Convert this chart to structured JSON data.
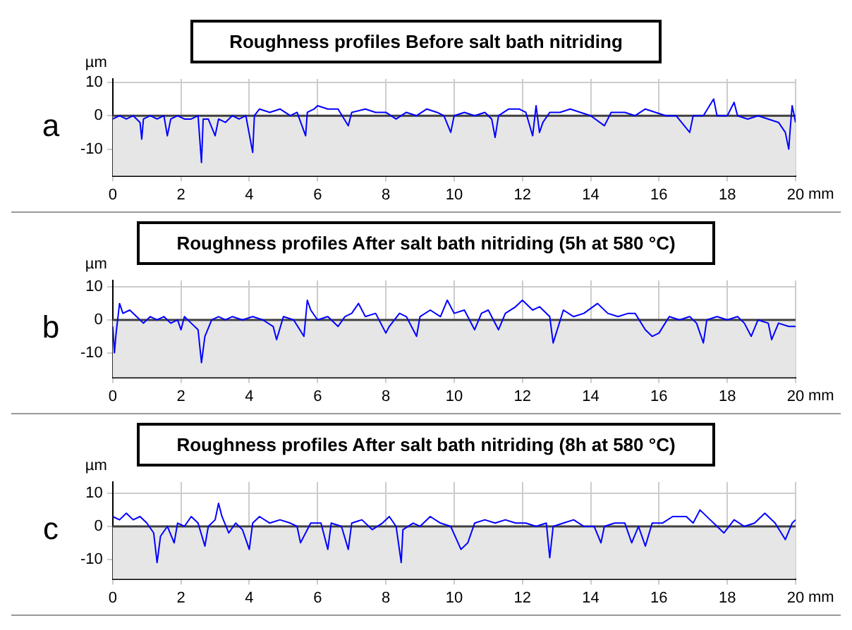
{
  "chart_data": [
    {
      "type": "line",
      "title": "Roughness profiles Before salt bath nitriding",
      "xlabel": "mm",
      "ylabel": "µm",
      "annotations": [
        "a"
      ],
      "xlim": [
        0,
        20
      ],
      "xticks": [
        0,
        2,
        4,
        6,
        8,
        10,
        12,
        14,
        16,
        18,
        20
      ],
      "ylim": [
        -18,
        11
      ],
      "yticks": [
        -10,
        0,
        10
      ],
      "grid": true,
      "legend": false,
      "marker": "none",
      "line_style": "solid",
      "ref_lines": [
        {
          "axis": "y",
          "value": 0,
          "color": "#404040"
        }
      ],
      "bands": [
        {
          "axis": "y",
          "from": -18,
          "to": 0,
          "color": "#e6e6e6"
        }
      ],
      "series": [
        {
          "color": "#0000ff",
          "x": [
            0,
            0.2,
            0.4,
            0.6,
            0.8,
            0.85,
            0.9,
            1.1,
            1.3,
            1.5,
            1.6,
            1.7,
            1.9,
            2.1,
            2.3,
            2.5,
            2.6,
            2.65,
            2.8,
            3.0,
            3.1,
            3.3,
            3.5,
            3.7,
            3.9,
            4.1,
            4.15,
            4.3,
            4.6,
            4.9,
            5.2,
            5.4,
            5.65,
            5.7,
            5.9,
            6.0,
            6.3,
            6.6,
            6.9,
            7.0,
            7.4,
            7.7,
            8.0,
            8.3,
            8.6,
            8.9,
            9.2,
            9.5,
            9.7,
            9.9,
            10.0,
            10.3,
            10.6,
            10.9,
            11.1,
            11.2,
            11.3,
            11.6,
            11.9,
            12.1,
            12.3,
            12.4,
            12.5,
            12.6,
            12.8,
            13.1,
            13.4,
            13.7,
            14.0,
            14.4,
            14.6,
            15.0,
            15.3,
            15.6,
            15.9,
            16.2,
            16.5,
            16.9,
            17.0,
            17.3,
            17.6,
            17.7,
            18.0,
            18.2,
            18.3,
            18.6,
            18.9,
            19.2,
            19.5,
            19.7,
            19.8,
            19.85,
            19.9,
            20
          ],
          "values": [
            -1,
            0,
            -1,
            0,
            -2,
            -7,
            -1,
            0,
            -1,
            0,
            -6,
            -1,
            0,
            -1,
            -1,
            0,
            -14,
            -1,
            -1,
            -6,
            -1,
            -2,
            0,
            -1,
            0,
            -11,
            0,
            2,
            1,
            2,
            0,
            1,
            -6,
            1,
            2,
            3,
            2,
            2,
            -3,
            1,
            2,
            1,
            1,
            -1,
            1,
            0,
            2,
            1,
            0,
            -5,
            0,
            1,
            0,
            1,
            -1,
            -6.5,
            0,
            2,
            2,
            1,
            -6,
            3,
            -5,
            -2,
            1,
            1,
            2,
            1,
            0,
            -3,
            1,
            1,
            0,
            2,
            1,
            0,
            0,
            -5,
            0,
            0,
            5,
            0,
            0,
            4,
            0,
            -1,
            0,
            -1,
            -2,
            -5,
            -10,
            -3,
            3,
            -2
          ]
        }
      ]
    },
    {
      "type": "line",
      "title": "Roughness profiles After salt bath nitriding (5h at 580 °C)",
      "xlabel": "mm",
      "ylabel": "µm",
      "annotations": [
        "b"
      ],
      "xlim": [
        0,
        20
      ],
      "xticks": [
        0,
        2,
        4,
        6,
        8,
        10,
        12,
        14,
        16,
        18,
        20
      ],
      "ylim": [
        -17.5,
        12
      ],
      "yticks": [
        -10,
        0,
        10
      ],
      "grid": true,
      "legend": false,
      "marker": "none",
      "line_style": "solid",
      "ref_lines": [
        {
          "axis": "y",
          "value": 0,
          "color": "#404040"
        }
      ],
      "bands": [
        {
          "axis": "y",
          "from": -17.5,
          "to": 0,
          "color": "#e6e6e6"
        }
      ],
      "series": [
        {
          "color": "#0000ff",
          "x": [
            0,
            0.05,
            0.1,
            0.2,
            0.3,
            0.5,
            0.7,
            0.9,
            1.1,
            1.3,
            1.5,
            1.7,
            1.9,
            2.0,
            2.1,
            2.3,
            2.5,
            2.6,
            2.7,
            2.9,
            3.1,
            3.3,
            3.5,
            3.8,
            4.1,
            4.4,
            4.7,
            4.8,
            5.0,
            5.3,
            5.6,
            5.7,
            5.8,
            6.0,
            6.3,
            6.6,
            6.8,
            7.0,
            7.2,
            7.4,
            7.7,
            8.0,
            8.1,
            8.4,
            8.6,
            8.9,
            9.0,
            9.3,
            9.6,
            9.8,
            10.0,
            10.3,
            10.6,
            10.8,
            11.0,
            11.3,
            11.5,
            11.8,
            12.0,
            12.3,
            12.5,
            12.8,
            12.9,
            13.2,
            13.5,
            13.8,
            14.2,
            14.5,
            14.8,
            15.1,
            15.3,
            15.6,
            15.8,
            16.0,
            16.3,
            16.6,
            16.9,
            17.1,
            17.3,
            17.4,
            17.7,
            18.0,
            18.3,
            18.5,
            18.7,
            18.9,
            19.2,
            19.3,
            19.5,
            19.8,
            20
          ],
          "values": [
            -2,
            -10,
            -4,
            5,
            2,
            3,
            1,
            -1,
            1,
            0,
            1,
            -1,
            0,
            -3,
            1,
            -1,
            -3,
            -13,
            -5,
            0,
            1,
            0,
            1,
            0,
            1,
            0,
            -2,
            -6,
            1,
            0,
            -5,
            6,
            3,
            0,
            1,
            -2,
            1,
            2,
            5,
            1,
            2,
            -4,
            -2,
            2,
            1,
            -5,
            1,
            3,
            1,
            6,
            2,
            3,
            -3,
            2,
            3,
            -3,
            2,
            4,
            6,
            3,
            4,
            1,
            -7,
            3,
            1,
            2,
            5,
            2,
            1,
            2,
            2,
            -3,
            -5,
            -4,
            1,
            0,
            1,
            -1,
            -7,
            0,
            1,
            0,
            1,
            -1,
            -5,
            0,
            -1,
            -6,
            -1,
            -2,
            -2
          ]
        }
      ]
    },
    {
      "type": "line",
      "title": "Roughness profiles After salt bath nitriding (8h at 580 °C)",
      "xlabel": "mm",
      "ylabel": "µm",
      "annotations": [
        "c"
      ],
      "xlim": [
        0,
        20
      ],
      "xticks": [
        0,
        2,
        4,
        6,
        8,
        10,
        12,
        14,
        16,
        18,
        20
      ],
      "ylim": [
        -16,
        13.5
      ],
      "yticks": [
        -10,
        0,
        10
      ],
      "grid": true,
      "legend": false,
      "marker": "none",
      "line_style": "solid",
      "ref_lines": [
        {
          "axis": "y",
          "value": 0,
          "color": "#404040"
        }
      ],
      "bands": [
        {
          "axis": "y",
          "from": -16,
          "to": 0,
          "color": "#e6e6e6"
        }
      ],
      "series": [
        {
          "color": "#0000ff",
          "x": [
            0,
            0.2,
            0.4,
            0.6,
            0.8,
            1.0,
            1.2,
            1.3,
            1.4,
            1.6,
            1.8,
            1.9,
            2.1,
            2.3,
            2.5,
            2.7,
            2.8,
            3.0,
            3.1,
            3.2,
            3.4,
            3.6,
            3.8,
            4.0,
            4.1,
            4.3,
            4.6,
            4.9,
            5.2,
            5.4,
            5.5,
            5.8,
            6.1,
            6.3,
            6.4,
            6.7,
            6.9,
            7.0,
            7.3,
            7.6,
            7.9,
            8.1,
            8.3,
            8.45,
            8.5,
            8.8,
            9.0,
            9.3,
            9.6,
            9.9,
            10.2,
            10.4,
            10.6,
            10.9,
            11.2,
            11.5,
            11.8,
            12.1,
            12.4,
            12.7,
            12.8,
            12.9,
            13.2,
            13.5,
            13.8,
            14.1,
            14.3,
            14.4,
            14.7,
            15.0,
            15.2,
            15.4,
            15.6,
            15.8,
            16.1,
            16.4,
            16.8,
            17.0,
            17.2,
            17.5,
            17.9,
            18.2,
            18.5,
            18.8,
            19.1,
            19.4,
            19.7,
            19.9,
            20
          ],
          "values": [
            3,
            2,
            4,
            2,
            3,
            1,
            -2,
            -11,
            -3,
            0,
            -5,
            1,
            0,
            3,
            1,
            -6,
            0,
            2,
            7,
            3,
            -2,
            1,
            -1,
            -7,
            1,
            3,
            1,
            2,
            1,
            0,
            -5,
            1,
            1,
            -7,
            1,
            0,
            -7,
            1,
            2,
            -1,
            1,
            3,
            0,
            -11,
            -1,
            1,
            0,
            3,
            1,
            0,
            -7,
            -5,
            1,
            2,
            1,
            2,
            1,
            1,
            0,
            1,
            -9.5,
            0,
            1,
            2,
            0,
            0,
            -5,
            0,
            1,
            1,
            -5,
            0,
            -6,
            1,
            1,
            3,
            3,
            1,
            5,
            2,
            -2,
            2,
            0,
            1,
            4,
            1,
            -4,
            1,
            2
          ]
        }
      ]
    }
  ]
}
